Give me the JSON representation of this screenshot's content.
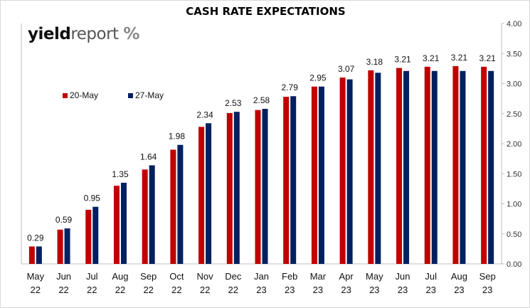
{
  "chart_data": {
    "type": "bar",
    "title": "CASH RATE EXPECTATIONS",
    "logo": {
      "part1": "yield",
      "part2": "report",
      "symbol": "%"
    },
    "categories": [
      [
        "May",
        "22"
      ],
      [
        "Jun",
        "22"
      ],
      [
        "Jul",
        "22"
      ],
      [
        "Aug",
        "22"
      ],
      [
        "Sep",
        "22"
      ],
      [
        "Oct",
        "22"
      ],
      [
        "Nov",
        "22"
      ],
      [
        "Dec",
        "22"
      ],
      [
        "Jan",
        "23"
      ],
      [
        "Feb",
        "23"
      ],
      [
        "Mar",
        "23"
      ],
      [
        "Apr",
        "23"
      ],
      [
        "May",
        "23"
      ],
      [
        "Jun",
        "23"
      ],
      [
        "Jul",
        "23"
      ],
      [
        "Aug",
        "23"
      ],
      [
        "Sep",
        "23"
      ]
    ],
    "series": [
      {
        "name": "20-May",
        "color": "#c00000",
        "values": [
          0.29,
          0.57,
          0.9,
          1.3,
          1.57,
          1.9,
          2.28,
          2.51,
          2.56,
          2.78,
          2.95,
          3.1,
          3.22,
          3.26,
          3.28,
          3.29,
          3.28
        ]
      },
      {
        "name": "27-May",
        "color": "#002060",
        "values": [
          0.29,
          0.59,
          0.95,
          1.35,
          1.64,
          1.98,
          2.34,
          2.53,
          2.58,
          2.79,
          2.95,
          3.07,
          3.18,
          3.21,
          3.21,
          3.21,
          3.21
        ]
      }
    ],
    "data_labels": [
      "0.29",
      "0.59",
      "0.95",
      "1.35",
      "1.64",
      "1.98",
      "2.34",
      "2.53",
      "2.58",
      "2.79",
      "2.95",
      "3.07",
      "3.18",
      "3.21",
      "3.21",
      "3.21",
      "3.21"
    ],
    "y_axis": {
      "position": "right",
      "ylim": [
        0,
        4.0
      ],
      "ticks": [
        "0.00",
        "0.50",
        "1.00",
        "1.50",
        "2.00",
        "2.50",
        "3.00",
        "3.50",
        "4.00"
      ]
    },
    "legend": "upper-left",
    "grid": false
  }
}
